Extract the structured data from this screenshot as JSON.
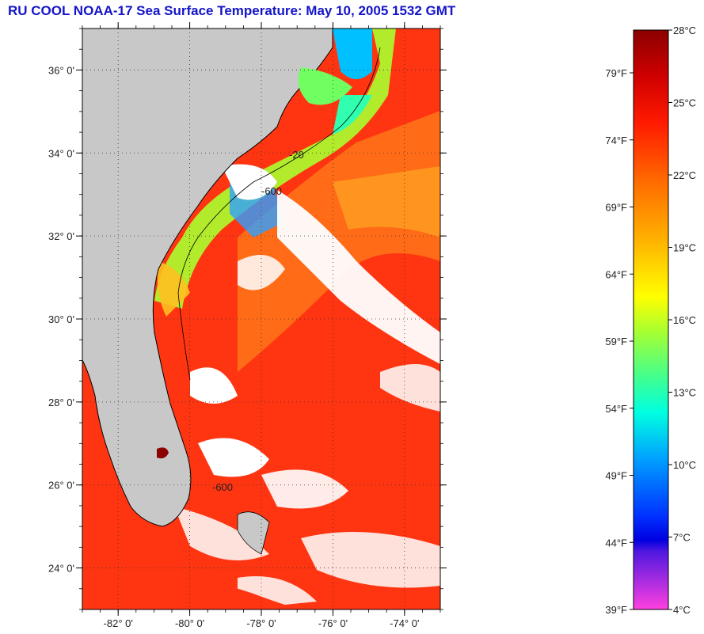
{
  "title": "RU COOL  NOAA-17  Sea Surface Temperature:  May 10, 2005 1532 GMT",
  "map": {
    "lon_range": [
      -83,
      -73
    ],
    "lat_range": [
      23,
      37
    ],
    "lat_ticks": [
      {
        "value": 24,
        "label": "24° 0'"
      },
      {
        "value": 26,
        "label": "26° 0'"
      },
      {
        "value": 28,
        "label": "28° 0'"
      },
      {
        "value": 30,
        "label": "30° 0'"
      },
      {
        "value": 32,
        "label": "32° 0'"
      },
      {
        "value": 34,
        "label": "34° 0'"
      },
      {
        "value": 36,
        "label": "36° 0'"
      }
    ],
    "lon_ticks": [
      {
        "value": -82,
        "label": "-82° 0'"
      },
      {
        "value": -80,
        "label": "-80° 0'"
      },
      {
        "value": -78,
        "label": "-78° 0'"
      },
      {
        "value": -76,
        "label": "-76° 0'"
      },
      {
        "value": -74,
        "label": "-74° 0'"
      }
    ],
    "isobath_labels": [
      "-20",
      "-600",
      "-600"
    ],
    "colors": {
      "land": "#c8c8c8",
      "ocean_warm": "#ff3010",
      "ocean_orange": "#ff7a1a",
      "cloud": "#ffffff"
    }
  },
  "colorbar": {
    "celsius_labels": [
      "28°C",
      "25°C",
      "22°C",
      "19°C",
      "16°C",
      "13°C",
      "10°C",
      "7°C",
      "4°C"
    ],
    "fahrenheit_labels": [
      "79°F",
      "74°F",
      "69°F",
      "64°F",
      "59°F",
      "54°F",
      "49°F",
      "44°F",
      "39°F"
    ],
    "colors": [
      "#8b0000",
      "#e00000",
      "#ff2000",
      "#ff6000",
      "#ffa000",
      "#ffe000",
      "#c0ff20",
      "#40ff80",
      "#00ffd0",
      "#00a0ff",
      "#0040ff",
      "#0000e0",
      "#8020e0",
      "#ff40e0"
    ]
  }
}
